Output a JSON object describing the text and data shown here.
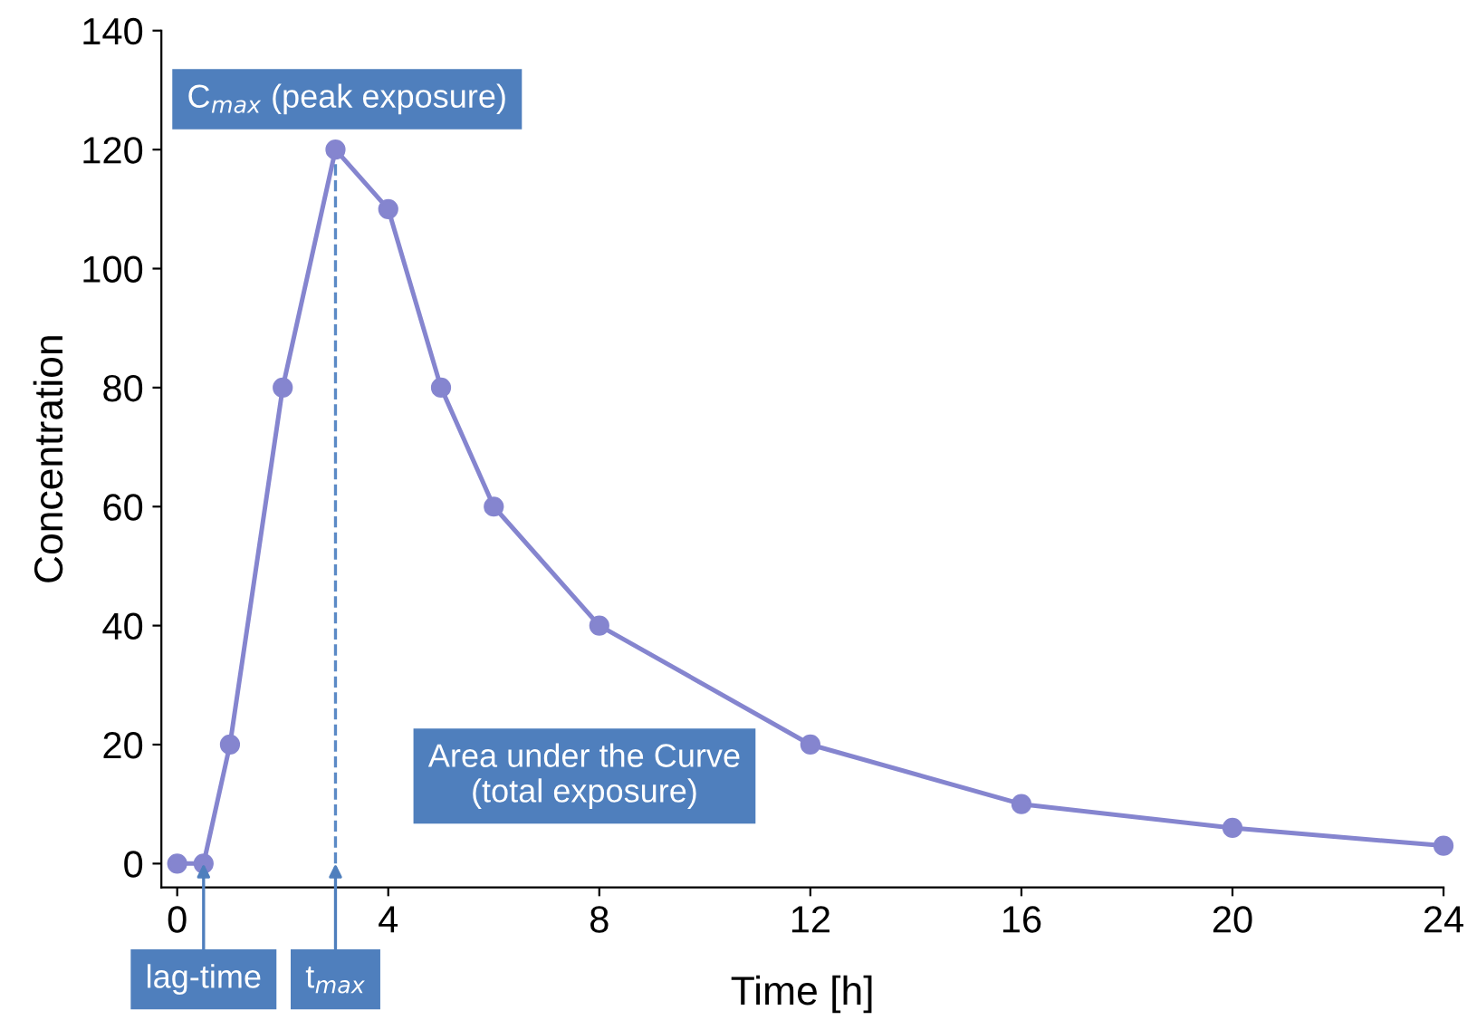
{
  "chart_data": {
    "type": "line",
    "xlabel": "Time [h]",
    "ylabel": "Concentration",
    "x": [
      0,
      0.5,
      1,
      2,
      3,
      4,
      5,
      6,
      8,
      12,
      16,
      20,
      24
    ],
    "series": [
      {
        "color": "#8585cf",
        "values": [
          0,
          0,
          20,
          80,
          120,
          110,
          80,
          60,
          40,
          20,
          10,
          6,
          3
        ]
      }
    ],
    "marker": "circle",
    "line_style": "solid",
    "grid": false,
    "legend": false,
    "xlim": [
      -0.3,
      24
    ],
    "ylim": [
      -4,
      140
    ],
    "xticks": [
      0,
      4,
      8,
      12,
      16,
      20,
      24
    ],
    "yticks": [
      0,
      20,
      40,
      60,
      80,
      100,
      120,
      140
    ],
    "ref_lines": [
      {
        "axis": "x",
        "value": 3,
        "color": "#5b8ac6",
        "line_style": "dashed"
      }
    ],
    "annotations": [
      "C$_{max}$ (peak exposure)",
      "Area under the Curve\n(total exposure)",
      {
        "text": "lag-time",
        "x": 0.5,
        "y": 0
      },
      {
        "text": "t$_{max}$",
        "x": 3,
        "y": 0
      }
    ]
  }
}
